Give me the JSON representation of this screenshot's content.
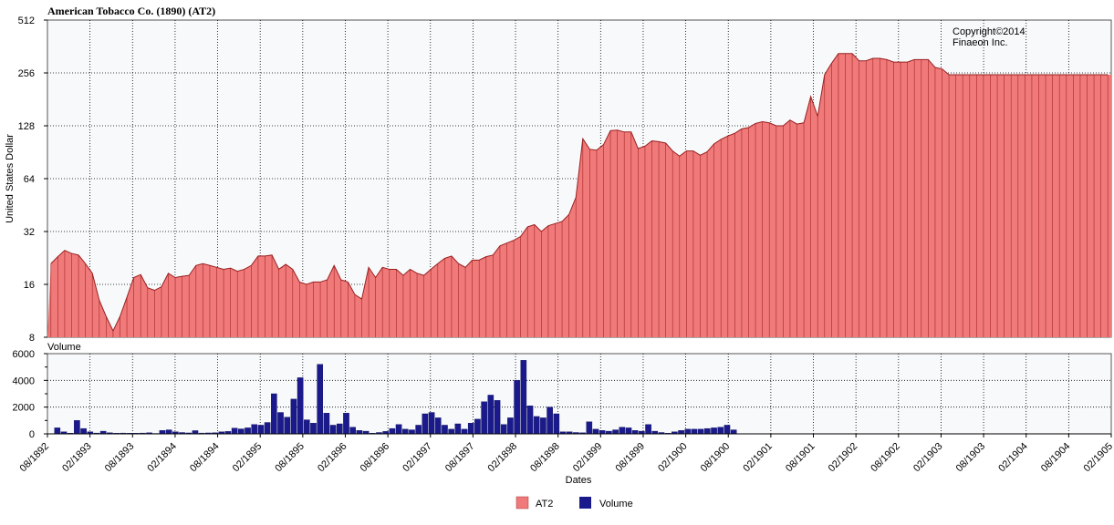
{
  "chart_data": [
    {
      "type": "area",
      "title": "American Tobacco Co. (1890) (AT2)",
      "ylabel": "United States Dollar",
      "copyright": [
        "Copyright©2014",
        "Finaeon Inc."
      ],
      "y_scale": "log2",
      "ylim": [
        8,
        512
      ],
      "y_ticks": [
        "8",
        "16",
        "32",
        "64",
        "128",
        "256",
        "512"
      ],
      "grid": true,
      "start": "08/1892",
      "series": [
        {
          "name": "AT2",
          "color": "#f07a7a",
          "values": [
            21,
            23,
            25,
            24,
            23.5,
            21,
            18.5,
            13,
            10.5,
            8.7,
            10.5,
            13.5,
            17.5,
            18.2,
            15.3,
            14.8,
            15.5,
            18.5,
            17.5,
            17.8,
            18,
            20.5,
            21,
            20.5,
            20,
            19.5,
            19.8,
            19,
            19.5,
            20.5,
            23.2,
            23.2,
            23.5,
            19.5,
            20.8,
            19.5,
            16.5,
            16,
            16.5,
            16.5,
            17,
            20.5,
            17,
            16.5,
            14,
            13.2,
            20,
            17.5,
            20,
            19.5,
            19.5,
            18,
            19.5,
            18.5,
            18,
            19.5,
            21,
            22.5,
            23.2,
            21,
            20,
            22,
            22,
            23,
            23.5,
            26.5,
            27.5,
            28.5,
            30,
            34,
            35,
            32,
            34.5,
            35.5,
            36.5,
            40,
            50,
            108,
            94,
            93,
            100,
            120,
            121,
            118,
            118,
            95,
            98,
            105,
            104,
            102,
            92,
            86,
            92,
            92,
            87,
            91,
            101,
            107,
            112,
            116,
            123,
            125,
            132,
            135,
            133,
            128,
            128,
            138,
            131,
            133,
            188,
            145,
            250,
            290,
            330,
            330,
            330,
            300,
            300,
            310,
            310,
            305,
            295,
            295,
            295,
            305,
            305,
            305,
            275,
            270,
            250,
            250,
            250,
            250,
            250,
            250,
            250,
            250,
            250,
            250,
            250,
            250,
            250,
            250,
            250,
            250,
            250,
            250,
            250,
            250,
            250,
            250,
            250,
            250
          ]
        }
      ]
    },
    {
      "type": "bar",
      "title": "Volume",
      "ylabel": "",
      "ylim": [
        0,
        6000
      ],
      "y_ticks": [
        "0",
        "2000",
        "4000",
        "6000"
      ],
      "grid": true,
      "x_ticks": [
        "08/1892",
        "02/1893",
        "08/1893",
        "02/1894",
        "08/1894",
        "02/1895",
        "08/1895",
        "02/1896",
        "08/1896",
        "02/1897",
        "08/1897",
        "02/1898",
        "08/1898",
        "02/1899",
        "08/1899",
        "02/1900",
        "08/1900",
        "02/1901",
        "08/1901",
        "02/1902",
        "08/1902",
        "02/1903",
        "08/1903",
        "02/1904",
        "08/1904",
        "02/1905"
      ],
      "xlabel": "Dates",
      "series": [
        {
          "name": "Volume",
          "color": "#1a1a8c",
          "values": [
            0,
            450,
            150,
            50,
            1000,
            400,
            150,
            60,
            200,
            80,
            50,
            60,
            50,
            50,
            60,
            80,
            30,
            250,
            300,
            150,
            100,
            70,
            240,
            60,
            70,
            80,
            150,
            180,
            430,
            370,
            450,
            700,
            650,
            850,
            3000,
            1600,
            1250,
            2600,
            4200,
            1050,
            800,
            5200,
            1550,
            650,
            750,
            1550,
            500,
            250,
            200,
            50,
            100,
            180,
            400,
            700,
            350,
            300,
            650,
            1500,
            1600,
            1200,
            650,
            350,
            750,
            350,
            800,
            1100,
            2400,
            2900,
            2500,
            700,
            1200,
            4000,
            5500,
            2100,
            1300,
            1200,
            2000,
            1500,
            150,
            150,
            100,
            80,
            900,
            350,
            250,
            200,
            300,
            500,
            450,
            250,
            200,
            700,
            200,
            100,
            50,
            150,
            250,
            350,
            350,
            350,
            400,
            450,
            500,
            650,
            300,
            0,
            0,
            0,
            0,
            0,
            0,
            0,
            0,
            0,
            0,
            0,
            0,
            0,
            0,
            0,
            0,
            0,
            0,
            0,
            0,
            0,
            0,
            0,
            0,
            0,
            0,
            0,
            0,
            0,
            0,
            0,
            0,
            0,
            0,
            0,
            0,
            0,
            0,
            0,
            0,
            0,
            0,
            0,
            0,
            0,
            0,
            0,
            0,
            0,
            0,
            0,
            0,
            0,
            0,
            0,
            0,
            0
          ]
        }
      ]
    }
  ],
  "legend": [
    {
      "label": "AT2",
      "color": "#f07a7a"
    },
    {
      "label": "Volume",
      "color": "#1a1a8c"
    }
  ]
}
